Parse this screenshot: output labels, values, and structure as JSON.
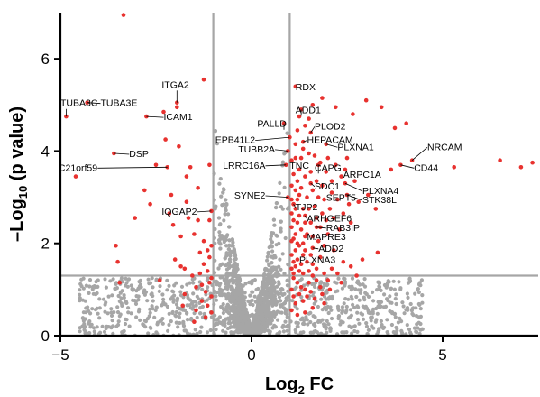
{
  "chart_data": {
    "type": "scatter",
    "title": "",
    "xlabel": "Log",
    "xlabel_sub": "2",
    "xlabel_suffix": " FC",
    "ylabel": "–Log",
    "ylabel_sub": "10",
    "ylabel_suffix": " (p value)",
    "xlim": [
      -5,
      7.5
    ],
    "ylim": [
      0,
      7
    ],
    "xticks": [
      {
        "value": -5,
        "label": "−5"
      },
      {
        "value": 0,
        "label": "0"
      },
      {
        "value": 5,
        "label": "5"
      }
    ],
    "yticks": [
      {
        "value": 0,
        "label": "0"
      },
      {
        "value": 2,
        "label": "2"
      },
      {
        "value": 4,
        "label": "4"
      },
      {
        "value": 6,
        "label": "6"
      }
    ],
    "thresholds": {
      "fc_low": -1,
      "fc_high": 1,
      "p": 1.3
    },
    "colors": {
      "significant": "#e8322f",
      "nonsignificant": "#a6a6a6",
      "threshold_line": "#a6a6a6",
      "axis": "#000000",
      "label_line": "#000000"
    },
    "labeled_points": [
      {
        "gene": "TUBA3C",
        "x": -4.85,
        "y": 4.75,
        "label_x": -5.0,
        "label_y": 5.05
      },
      {
        "gene": "TUBA3E",
        "x": -4.3,
        "y": 5.05,
        "label_x": -3.95,
        "label_y": 5.05
      },
      {
        "gene": "ITGA2",
        "x": -1.95,
        "y": 5.05,
        "label_x": -2.35,
        "label_y": 5.45
      },
      {
        "gene": "ICAM1",
        "x": -2.75,
        "y": 4.75,
        "label_x": -2.3,
        "label_y": 4.75
      },
      {
        "gene": "DSP",
        "x": -3.6,
        "y": 3.95,
        "label_x": -3.2,
        "label_y": 3.95
      },
      {
        "gene": "C21orf59",
        "x": -2.2,
        "y": 3.65,
        "label_x": -5.05,
        "label_y": 3.65
      },
      {
        "gene": "IQGAP2",
        "x": -1.05,
        "y": 2.7,
        "label_x": -2.35,
        "label_y": 2.7
      },
      {
        "gene": "RDX",
        "x": 1.15,
        "y": 5.4,
        "label_x": 1.15,
        "label_y": 5.4
      },
      {
        "gene": "ADD1",
        "x": 1.3,
        "y": 4.9,
        "label_x": 1.15,
        "label_y": 4.9
      },
      {
        "gene": "PALLD",
        "x": 0.85,
        "y": 4.6,
        "label_x": 0.15,
        "label_y": 4.6
      },
      {
        "gene": "PLOD2",
        "x": 1.55,
        "y": 4.4,
        "label_x": 1.65,
        "label_y": 4.55
      },
      {
        "gene": "EPB41L2",
        "x": 1.0,
        "y": 4.3,
        "label_x": -0.95,
        "label_y": 4.25
      },
      {
        "gene": "HEPACAM",
        "x": 1.35,
        "y": 4.2,
        "label_x": 1.45,
        "label_y": 4.25
      },
      {
        "gene": "PLXNA1",
        "x": 1.95,
        "y": 4.15,
        "label_x": 2.25,
        "label_y": 4.1
      },
      {
        "gene": "TUBB2A",
        "x": 0.95,
        "y": 4.0,
        "label_x": -0.35,
        "label_y": 4.05
      },
      {
        "gene": "NRCAM",
        "x": 4.2,
        "y": 3.8,
        "label_x": 4.6,
        "label_y": 4.1
      },
      {
        "gene": "TNC",
        "x": 1.05,
        "y": 3.8,
        "label_x": 1.0,
        "label_y": 3.7
      },
      {
        "gene": "LRRC16A",
        "x": 0.9,
        "y": 3.7,
        "label_x": -0.75,
        "label_y": 3.7
      },
      {
        "gene": "CAPG",
        "x": 1.75,
        "y": 3.7,
        "label_x": 1.65,
        "label_y": 3.65
      },
      {
        "gene": "CD44",
        "x": 3.9,
        "y": 3.7,
        "label_x": 4.25,
        "label_y": 3.65
      },
      {
        "gene": "ARPC1A",
        "x": 2.45,
        "y": 3.6,
        "label_x": 2.4,
        "label_y": 3.5
      },
      {
        "gene": "SDC1",
        "x": 1.55,
        "y": 3.3,
        "label_x": 1.65,
        "label_y": 3.25
      },
      {
        "gene": "PLXNA4",
        "x": 2.45,
        "y": 3.3,
        "label_x": 2.9,
        "label_y": 3.15
      },
      {
        "gene": "SEPT5",
        "x": 2.1,
        "y": 3.1,
        "label_x": 1.95,
        "label_y": 3.0
      },
      {
        "gene": "STK38L",
        "x": 2.5,
        "y": 3.05,
        "label_x": 2.9,
        "label_y": 2.95
      },
      {
        "gene": "SYNE2",
        "x": 0.95,
        "y": 3.0,
        "label_x": -0.45,
        "label_y": 3.05
      },
      {
        "gene": "TJP2",
        "x": 1.1,
        "y": 2.85,
        "label_x": 1.15,
        "label_y": 2.8
      },
      {
        "gene": "ARHGEF6",
        "x": 1.4,
        "y": 2.6,
        "label_x": 1.45,
        "label_y": 2.55
      },
      {
        "gene": "RAB3IP",
        "x": 1.7,
        "y": 2.35,
        "label_x": 1.95,
        "label_y": 2.35
      },
      {
        "gene": "MAPRE3",
        "x": 1.4,
        "y": 2.15,
        "label_x": 1.45,
        "label_y": 2.15
      },
      {
        "gene": "ADD2",
        "x": 1.6,
        "y": 1.9,
        "label_x": 1.75,
        "label_y": 1.9
      },
      {
        "gene": "PLXNA3",
        "x": 1.35,
        "y": 1.75,
        "label_x": 1.25,
        "label_y": 1.65
      }
    ],
    "significant_points": [
      [
        -3.35,
        6.95
      ],
      [
        -1.25,
        5.55
      ],
      [
        -4.6,
        3.45
      ],
      [
        -3.55,
        1.95
      ],
      [
        -3.5,
        1.6
      ],
      [
        -3.45,
        1.15
      ],
      [
        -3.05,
        2.55
      ],
      [
        -2.65,
        2.85
      ],
      [
        -2.25,
        4.25
      ],
      [
        -2.1,
        3.05
      ],
      [
        -2.05,
        2.4
      ],
      [
        -2.0,
        1.65
      ],
      [
        -1.9,
        4.1
      ],
      [
        -1.85,
        2.15
      ],
      [
        -1.85,
        1.5
      ],
      [
        -1.75,
        1.45
      ],
      [
        -1.75,
        0.9
      ],
      [
        -1.7,
        3.45
      ],
      [
        -1.7,
        2.9
      ],
      [
        -1.6,
        3.65
      ],
      [
        -1.55,
        1.3
      ],
      [
        -1.5,
        2.2
      ],
      [
        -1.45,
        1.05
      ],
      [
        -1.45,
        0.55
      ],
      [
        -1.4,
        3.2
      ],
      [
        -1.4,
        2.5
      ],
      [
        -1.35,
        1.8
      ],
      [
        -1.35,
        1.35
      ],
      [
        -1.3,
        1.1
      ],
      [
        -1.3,
        0.75
      ],
      [
        -1.25,
        2.05
      ],
      [
        -1.25,
        1.55
      ],
      [
        -1.2,
        0.95
      ],
      [
        -1.2,
        0.4
      ],
      [
        -1.15,
        1.85
      ],
      [
        -1.15,
        1.4
      ],
      [
        -1.15,
        0.65
      ],
      [
        -1.1,
        2.5
      ],
      [
        -1.1,
        1.7
      ],
      [
        -1.1,
        1.15
      ],
      [
        -1.05,
        1.95
      ],
      [
        -1.05,
        1.25
      ],
      [
        -1.05,
        0.85
      ],
      [
        -1.05,
        0.5
      ],
      [
        -1.1,
        3.7
      ],
      [
        -1.5,
        0.3
      ],
      [
        -1.8,
        0.65
      ],
      [
        -2.4,
        1.2
      ],
      [
        -2.5,
        3.7
      ],
      [
        -2.8,
        3.15
      ],
      [
        -2.3,
        4.85
      ],
      [
        -1.95,
        4.95
      ],
      [
        -2.15,
        2.65
      ],
      [
        -1.65,
        2.55
      ],
      [
        3.0,
        5.1
      ],
      [
        3.4,
        4.95
      ],
      [
        3.65,
        3.6
      ],
      [
        3.75,
        4.5
      ],
      [
        4.05,
        4.6
      ],
      [
        6.5,
        3.8
      ],
      [
        7.05,
        3.65
      ],
      [
        7.35,
        3.75
      ],
      [
        5.3,
        3.65
      ],
      [
        2.65,
        4.8
      ],
      [
        2.2,
        4.95
      ],
      [
        1.85,
        5.15
      ],
      [
        1.6,
        5.0
      ],
      [
        1.5,
        4.7
      ],
      [
        1.4,
        4.55
      ],
      [
        1.25,
        4.75
      ],
      [
        1.2,
        4.45
      ],
      [
        1.15,
        4.15
      ],
      [
        1.15,
        3.85
      ],
      [
        1.1,
        3.5
      ],
      [
        1.05,
        3.25
      ],
      [
        1.05,
        2.95
      ],
      [
        1.05,
        2.65
      ],
      [
        1.05,
        2.35
      ],
      [
        1.05,
        2.05
      ],
      [
        1.05,
        1.75
      ],
      [
        1.05,
        1.45
      ],
      [
        1.1,
        2.85
      ],
      [
        1.1,
        2.5
      ],
      [
        1.1,
        2.1
      ],
      [
        1.1,
        1.6
      ],
      [
        1.1,
        1.35
      ],
      [
        1.15,
        3.15
      ],
      [
        1.15,
        2.75
      ],
      [
        1.15,
        2.2
      ],
      [
        1.15,
        1.85
      ],
      [
        1.15,
        1.5
      ],
      [
        1.2,
        3.35
      ],
      [
        1.2,
        2.95
      ],
      [
        1.2,
        2.45
      ],
      [
        1.2,
        2.0
      ],
      [
        1.2,
        1.65
      ],
      [
        1.25,
        3.6
      ],
      [
        1.25,
        3.05
      ],
      [
        1.25,
        2.6
      ],
      [
        1.25,
        1.95
      ],
      [
        1.25,
        1.4
      ],
      [
        1.3,
        3.85
      ],
      [
        1.3,
        3.2
      ],
      [
        1.3,
        2.3
      ],
      [
        1.3,
        1.55
      ],
      [
        1.35,
        4.05
      ],
      [
        1.35,
        2.75
      ],
      [
        1.35,
        2.0
      ],
      [
        1.35,
        1.35
      ],
      [
        1.4,
        3.45
      ],
      [
        1.4,
        2.45
      ],
      [
        1.4,
        1.85
      ],
      [
        1.45,
        3.0
      ],
      [
        1.45,
        2.2
      ],
      [
        1.45,
        1.6
      ],
      [
        1.5,
        3.95
      ],
      [
        1.5,
        2.75
      ],
      [
        1.5,
        1.4
      ],
      [
        1.55,
        3.55
      ],
      [
        1.55,
        2.45
      ],
      [
        1.55,
        1.75
      ],
      [
        1.6,
        3.15
      ],
      [
        1.6,
        2.15
      ],
      [
        1.6,
        1.55
      ],
      [
        1.65,
        3.9
      ],
      [
        1.65,
        2.8
      ],
      [
        1.7,
        3.35
      ],
      [
        1.7,
        2.55
      ],
      [
        1.7,
        1.45
      ],
      [
        1.75,
        3.0
      ],
      [
        1.75,
        2.05
      ],
      [
        1.8,
        3.75
      ],
      [
        1.8,
        2.35
      ],
      [
        1.8,
        1.7
      ],
      [
        1.85,
        3.25
      ],
      [
        1.85,
        2.65
      ],
      [
        1.9,
        2.95
      ],
      [
        1.9,
        1.95
      ],
      [
        1.95,
        3.55
      ],
      [
        1.95,
        2.5
      ],
      [
        2.0,
        3.85
      ],
      [
        2.0,
        2.2
      ],
      [
        2.05,
        2.75
      ],
      [
        2.1,
        3.35
      ],
      [
        2.15,
        2.55
      ],
      [
        2.15,
        1.85
      ],
      [
        2.2,
        3.7
      ],
      [
        2.25,
        2.95
      ],
      [
        2.3,
        2.3
      ],
      [
        2.35,
        3.45
      ],
      [
        2.4,
        2.65
      ],
      [
        2.5,
        3.85
      ],
      [
        2.55,
        2.85
      ],
      [
        2.6,
        2.45
      ],
      [
        2.7,
        3.35
      ],
      [
        2.8,
        2.9
      ],
      [
        2.9,
        1.65
      ],
      [
        3.05,
        3.05
      ],
      [
        3.25,
        2.75
      ],
      [
        1.1,
        1.25
      ],
      [
        1.2,
        1.15
      ],
      [
        1.3,
        1.05
      ],
      [
        1.4,
        1.0
      ],
      [
        1.5,
        1.15
      ],
      [
        1.6,
        1.3
      ],
      [
        1.7,
        1.2
      ],
      [
        1.8,
        1.05
      ],
      [
        1.9,
        1.35
      ],
      [
        2.0,
        1.2
      ],
      [
        2.1,
        1.45
      ],
      [
        2.25,
        1.35
      ],
      [
        2.4,
        1.6
      ],
      [
        2.6,
        1.5
      ],
      [
        1.05,
        1.0
      ],
      [
        1.1,
        0.85
      ],
      [
        1.15,
        0.7
      ],
      [
        1.25,
        0.9
      ],
      [
        1.35,
        0.75
      ],
      [
        1.45,
        0.85
      ],
      [
        1.55,
        0.95
      ],
      [
        1.65,
        0.8
      ],
      [
        1.85,
        0.9
      ],
      [
        2.05,
        1.0
      ],
      [
        2.35,
        1.15
      ],
      [
        2.75,
        1.3
      ],
      [
        3.3,
        1.8
      ],
      [
        1.05,
        0.55
      ],
      [
        1.2,
        0.45
      ],
      [
        1.4,
        0.5
      ],
      [
        1.6,
        0.6
      ],
      [
        1.9,
        0.7
      ]
    ]
  }
}
